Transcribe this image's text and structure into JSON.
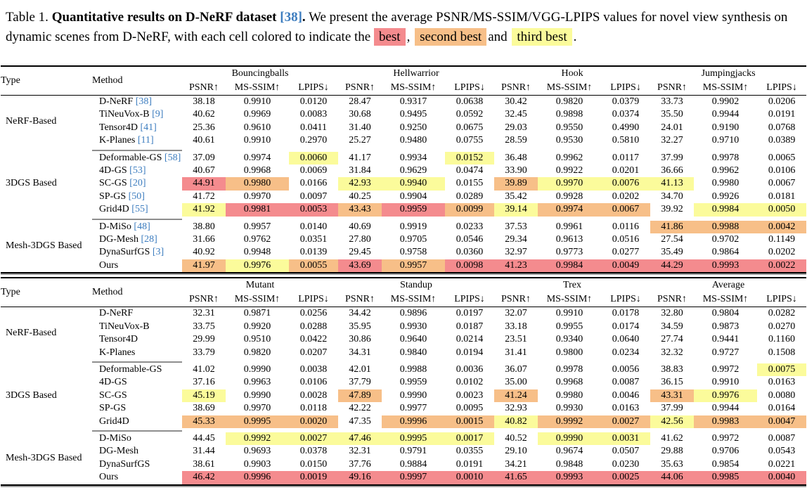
{
  "caption": {
    "label": "Table 1.",
    "title": "Quantitative results on D-NeRF dataset",
    "cite": "[38]",
    "period": ".",
    "body": "We present the average PSNR/MS-SSIM/VGG-LPIPS values for novel view synthesis on dynamic scenes from D-NeRF, with each cell colored to indicate the",
    "legend": [
      {
        "label": "best",
        "kind": "best",
        "after": ","
      },
      {
        "label": "second best",
        "kind": "second",
        "after": "and"
      },
      {
        "label": "third best",
        "kind": "third",
        "after": "."
      }
    ]
  },
  "colors": {
    "best": "#f48b8e",
    "second": "#f7bf88",
    "third": "#fbfb9b",
    "citation": "#3d7dbf"
  },
  "col_headers": {
    "type": "Type",
    "method": "Method"
  },
  "metrics": [
    "PSNR↑",
    "MS-SSIM↑",
    "LPIPS↓"
  ],
  "tables": [
    {
      "scenes": [
        "Bouncingballs",
        "Hellwarrior",
        "Hook",
        "Jumpingjacks"
      ],
      "groups": [
        {
          "type": "NeRF-Based",
          "rows": [
            {
              "method": "D-NeRF",
              "cite": "[38]",
              "values": [
                "38.18",
                "0.9910",
                "0.0120",
                "28.47",
                "0.9317",
                "0.0638",
                "30.42",
                "0.9820",
                "0.0379",
                "33.73",
                "0.9902",
                "0.0206"
              ],
              "hl": {}
            },
            {
              "method": "TiNeuVox-B",
              "cite": "[9]",
              "values": [
                "40.62",
                "0.9969",
                "0.0083",
                "30.68",
                "0.9495",
                "0.0592",
                "32.45",
                "0.9898",
                "0.0374",
                "35.50",
                "0.9944",
                "0.0191"
              ],
              "hl": {}
            },
            {
              "method": "Tensor4D",
              "cite": "[41]",
              "values": [
                "25.36",
                "0.9610",
                "0.0411",
                "31.40",
                "0.9250",
                "0.0675",
                "29.03",
                "0.9550",
                "0.4990",
                "24.01",
                "0.9190",
                "0.0768"
              ],
              "hl": {}
            },
            {
              "method": "K-Planes",
              "cite": "[11]",
              "values": [
                "40.61",
                "0.9910",
                "0.2970",
                "25.27",
                "0.9480",
                "0.0755",
                "28.59",
                "0.9530",
                "0.5810",
                "32.27",
                "0.9710",
                "0.0389"
              ],
              "hl": {}
            }
          ]
        },
        {
          "type": "3DGS Based",
          "rows": [
            {
              "method": "Deformable-GS",
              "cite": "[58]",
              "values": [
                "37.09",
                "0.9974",
                "0.0060",
                "41.17",
                "0.9934",
                "0.0152",
                "36.48",
                "0.9962",
                "0.0117",
                "37.99",
                "0.9978",
                "0.0065"
              ],
              "hl": {
                "2": "third",
                "5": "third"
              }
            },
            {
              "method": "4D-GS",
              "cite": "[53]",
              "values": [
                "40.67",
                "0.9968",
                "0.0069",
                "31.84",
                "0.9629",
                "0.0474",
                "33.90",
                "0.9922",
                "0.0201",
                "36.66",
                "0.9962",
                "0.0106"
              ],
              "hl": {}
            },
            {
              "method": "SC-GS",
              "cite": "[20]",
              "values": [
                "44.91",
                "0.9980",
                "0.0166",
                "42.93",
                "0.9940",
                "0.0155",
                "39.89",
                "0.9970",
                "0.0076",
                "41.13",
                "0.9980",
                "0.0067"
              ],
              "hl": {
                "0": "best",
                "1": "second",
                "3": "third",
                "4": "third",
                "6": "second",
                "7": "third",
                "8": "third",
                "9": "third"
              }
            },
            {
              "method": "SP-GS",
              "cite": "[50]",
              "values": [
                "41.72",
                "0.9970",
                "0.0097",
                "40.25",
                "0.9904",
                "0.0289",
                "35.42",
                "0.9928",
                "0.0202",
                "34.70",
                "0.9926",
                "0.0181"
              ],
              "hl": {}
            },
            {
              "method": "Grid4D",
              "cite": "[55]",
              "values": [
                "41.92",
                "0.9981",
                "0.0053",
                "43.43",
                "0.9959",
                "0.0099",
                "39.14",
                "0.9974",
                "0.0067",
                "39.92",
                "0.9984",
                "0.0050"
              ],
              "hl": {
                "0": "third",
                "1": "best",
                "2": "best",
                "3": "second",
                "4": "best",
                "5": "second",
                "6": "third",
                "7": "second",
                "8": "second",
                "10": "third",
                "11": "third"
              }
            }
          ]
        },
        {
          "type": "Mesh-3DGS Based",
          "rows": [
            {
              "method": "D-MiSo",
              "cite": "[48]",
              "values": [
                "38.80",
                "0.9957",
                "0.0140",
                "40.69",
                "0.9919",
                "0.0233",
                "37.53",
                "0.9961",
                "0.0116",
                "41.86",
                "0.9988",
                "0.0042"
              ],
              "hl": {
                "9": "second",
                "10": "second",
                "11": "second"
              }
            },
            {
              "method": "DG-Mesh",
              "cite": "[28]",
              "values": [
                "31.66",
                "0.9762",
                "0.0351",
                "27.80",
                "0.9705",
                "0.0546",
                "29.34",
                "0.9613",
                "0.0516",
                "27.54",
                "0.9702",
                "0.1149"
              ],
              "hl": {}
            },
            {
              "method": "DynaSurfGS",
              "cite": "[3]",
              "values": [
                "40.92",
                "0.9948",
                "0.0139",
                "29.45",
                "0.9758",
                "0.0360",
                "32.97",
                "0.9773",
                "0.0277",
                "35.49",
                "0.9864",
                "0.0202"
              ],
              "hl": {}
            },
            {
              "method": "Ours",
              "cite": null,
              "values": [
                "41.97",
                "0.9976",
                "0.0055",
                "43.69",
                "0.9957",
                "0.0098",
                "41.23",
                "0.9984",
                "0.0049",
                "44.29",
                "0.9993",
                "0.0022"
              ],
              "hl": {
                "0": "second",
                "1": "third",
                "2": "second",
                "3": "best",
                "4": "second",
                "5": "best",
                "6": "best",
                "7": "best",
                "8": "best",
                "9": "best",
                "10": "best",
                "11": "best"
              }
            }
          ]
        }
      ]
    },
    {
      "scenes": [
        "Mutant",
        "Standup",
        "Trex",
        "Average"
      ],
      "groups": [
        {
          "type": "NeRF-Based",
          "rows": [
            {
              "method": "D-NeRF",
              "cite": null,
              "values": [
                "32.31",
                "0.9871",
                "0.0256",
                "34.42",
                "0.9896",
                "0.0197",
                "32.07",
                "0.9910",
                "0.0178",
                "32.80",
                "0.9804",
                "0.0282"
              ],
              "hl": {}
            },
            {
              "method": "TiNeuVox-B",
              "cite": null,
              "values": [
                "33.75",
                "0.9920",
                "0.0288",
                "35.95",
                "0.9930",
                "0.0187",
                "33.18",
                "0.9955",
                "0.0174",
                "34.59",
                "0.9873",
                "0.0270"
              ],
              "hl": {}
            },
            {
              "method": "Tensor4D",
              "cite": null,
              "values": [
                "29.99",
                "0.9510",
                "0.0422",
                "30.86",
                "0.9640",
                "0.0214",
                "23.51",
                "0.9340",
                "0.0640",
                "27.74",
                "0.9441",
                "0.1160"
              ],
              "hl": {}
            },
            {
              "method": "K-Planes",
              "cite": null,
              "values": [
                "33.79",
                "0.9820",
                "0.0207",
                "34.31",
                "0.9840",
                "0.0194",
                "31.41",
                "0.9800",
                "0.0234",
                "32.32",
                "0.9727",
                "0.1508"
              ],
              "hl": {}
            }
          ]
        },
        {
          "type": "3DGS Based",
          "rows": [
            {
              "method": "Deformable-GS",
              "cite": null,
              "values": [
                "41.02",
                "0.9990",
                "0.0038",
                "42.01",
                "0.9988",
                "0.0036",
                "36.07",
                "0.9978",
                "0.0056",
                "38.83",
                "0.9972",
                "0.0075"
              ],
              "hl": {
                "11": "third"
              }
            },
            {
              "method": "4D-GS",
              "cite": null,
              "values": [
                "37.16",
                "0.9963",
                "0.0106",
                "37.79",
                "0.9959",
                "0.0102",
                "35.00",
                "0.9968",
                "0.0087",
                "36.15",
                "0.9910",
                "0.0163"
              ],
              "hl": {}
            },
            {
              "method": "SC-GS",
              "cite": null,
              "values": [
                "45.19",
                "0.9990",
                "0.0028",
                "47.89",
                "0.9990",
                "0.0023",
                "41.24",
                "0.9980",
                "0.0046",
                "43.31",
                "0.9976",
                "0.0080"
              ],
              "hl": {
                "0": "third",
                "3": "second",
                "6": "second",
                "9": "second",
                "10": "third"
              }
            },
            {
              "method": "SP-GS",
              "cite": null,
              "values": [
                "38.69",
                "0.9970",
                "0.0118",
                "42.22",
                "0.9977",
                "0.0095",
                "32.93",
                "0.9930",
                "0.0163",
                "37.99",
                "0.9944",
                "0.0164"
              ],
              "hl": {}
            },
            {
              "method": "Grid4D",
              "cite": null,
              "values": [
                "45.33",
                "0.9995",
                "0.0020",
                "47.35",
                "0.9996",
                "0.0015",
                "40.82",
                "0.9992",
                "0.0027",
                "42.56",
                "0.9983",
                "0.0047"
              ],
              "hl": {
                "0": "second",
                "1": "second",
                "2": "second",
                "4": "second",
                "5": "second",
                "6": "third",
                "7": "second",
                "8": "second",
                "9": "third",
                "10": "second",
                "11": "second"
              }
            }
          ]
        },
        {
          "type": "Mesh-3DGS Based",
          "rows": [
            {
              "method": "D-MiSo",
              "cite": null,
              "values": [
                "44.45",
                "0.9992",
                "0.0027",
                "47.46",
                "0.9995",
                "0.0017",
                "40.52",
                "0.9990",
                "0.0031",
                "41.62",
                "0.9972",
                "0.0087"
              ],
              "hl": {
                "1": "third",
                "2": "third",
                "3": "third",
                "4": "third",
                "5": "third",
                "7": "third",
                "8": "third"
              }
            },
            {
              "method": "DG-Mesh",
              "cite": null,
              "values": [
                "31.44",
                "0.9693",
                "0.0378",
                "32.31",
                "0.9791",
                "0.0355",
                "29.10",
                "0.9674",
                "0.0507",
                "29.88",
                "0.9706",
                "0.0543"
              ],
              "hl": {}
            },
            {
              "method": "DynaSurfGS",
              "cite": null,
              "values": [
                "38.61",
                "0.9903",
                "0.0150",
                "37.76",
                "0.9884",
                "0.0191",
                "34.21",
                "0.9848",
                "0.0230",
                "35.63",
                "0.9854",
                "0.0221"
              ],
              "hl": {}
            },
            {
              "method": "Ours",
              "cite": null,
              "values": [
                "46.42",
                "0.9996",
                "0.0019",
                "49.16",
                "0.9997",
                "0.0010",
                "41.65",
                "0.9993",
                "0.0025",
                "44.06",
                "0.9985",
                "0.0040"
              ],
              "hl": {
                "0": "best",
                "1": "best",
                "2": "best",
                "3": "best",
                "4": "best",
                "5": "best",
                "6": "best",
                "7": "best",
                "8": "best",
                "9": "best",
                "10": "best",
                "11": "best"
              }
            }
          ]
        }
      ]
    }
  ]
}
